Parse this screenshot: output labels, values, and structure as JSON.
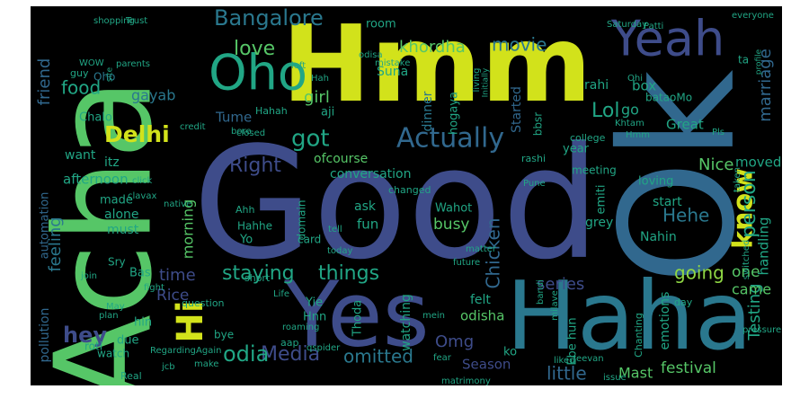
{
  "palette": {
    "background": "#000000",
    "colors": {
      "y": "#d2e21b",
      "g": "#56c667",
      "lg": "#8fd744",
      "t": "#21a685",
      "c": "#2a788e",
      "s": "#31688e",
      "b": "#3e4c8a",
      "n": "#46337e",
      "p": "#482575",
      "d": "#440154"
    }
  },
  "words": [
    {
      "text": "Good",
      "color": "b"
    },
    {
      "text": "Hmm",
      "color": "y"
    },
    {
      "text": "Acha",
      "color": "g"
    },
    {
      "text": "Ok",
      "color": "s"
    },
    {
      "text": "Haha",
      "color": "c"
    },
    {
      "text": "Yes",
      "color": "b"
    },
    {
      "text": "Yeah",
      "color": "b"
    },
    {
      "text": "Oho",
      "color": "t"
    },
    {
      "text": "Hi",
      "color": "y"
    },
    {
      "text": "know",
      "color": "y"
    },
    {
      "text": "Bangalore",
      "color": "c"
    },
    {
      "text": "Actually",
      "color": "s"
    },
    {
      "text": "Delhi",
      "color": "y"
    },
    {
      "text": "got",
      "color": "t"
    },
    {
      "text": "Lol",
      "color": "t"
    },
    {
      "text": "person",
      "color": "t"
    },
    {
      "text": "khordha",
      "color": "g"
    },
    {
      "text": "movie",
      "color": "c"
    },
    {
      "text": "love",
      "color": "g"
    },
    {
      "text": "food",
      "color": "t"
    },
    {
      "text": "friend",
      "color": "s"
    },
    {
      "text": "girl",
      "color": "g"
    },
    {
      "text": "gayab",
      "color": "c"
    },
    {
      "text": "Right",
      "color": "b"
    },
    {
      "text": "marriage",
      "color": "s"
    },
    {
      "text": "Media",
      "color": "b"
    },
    {
      "text": "omitted",
      "color": "c"
    },
    {
      "text": "hey",
      "color": "b"
    },
    {
      "text": "odia",
      "color": "t"
    },
    {
      "text": "staying",
      "color": "t"
    },
    {
      "text": "things",
      "color": "t"
    },
    {
      "text": "feeling",
      "color": "c"
    },
    {
      "text": "morning",
      "color": "g"
    },
    {
      "text": "going",
      "color": "lg"
    },
    {
      "text": "Testing",
      "color": "t"
    },
    {
      "text": "festival",
      "color": "g"
    },
    {
      "text": "little",
      "color": "s"
    },
    {
      "text": "Chicken",
      "color": "s"
    },
    {
      "text": "Nice",
      "color": "g"
    },
    {
      "text": "Hehe",
      "color": "c"
    },
    {
      "text": "series",
      "color": "b"
    },
    {
      "text": "Rice",
      "color": "b"
    },
    {
      "text": "time",
      "color": "b"
    },
    {
      "text": "Omg",
      "color": "b"
    },
    {
      "text": "one",
      "color": "g"
    },
    {
      "text": "came",
      "color": "g"
    },
    {
      "text": "Mast",
      "color": "g"
    },
    {
      "text": "emotions",
      "color": "t"
    },
    {
      "text": "handling",
      "color": "t"
    },
    {
      "text": "moved",
      "color": "t"
    },
    {
      "text": "Oho",
      "color": "c"
    },
    {
      "text": "conversation",
      "color": "t"
    },
    {
      "text": "ofcourse",
      "color": "g"
    },
    {
      "text": "afternoon",
      "color": "t"
    },
    {
      "text": "busy",
      "color": "g"
    },
    {
      "text": "watching",
      "color": "t"
    },
    {
      "text": "Season",
      "color": "b"
    },
    {
      "text": "odisha",
      "color": "g"
    },
    {
      "text": "pollution",
      "color": "s"
    },
    {
      "text": "automation",
      "color": "s"
    },
    {
      "text": "Tume",
      "color": "s"
    },
    {
      "text": "dinner",
      "color": "c"
    },
    {
      "text": "hogaya",
      "color": "t"
    },
    {
      "text": "Started",
      "color": "s"
    },
    {
      "text": "Suna",
      "color": "t"
    },
    {
      "text": "room",
      "color": "t"
    },
    {
      "text": "rahi",
      "color": "t"
    },
    {
      "text": "box",
      "color": "t"
    },
    {
      "text": "go",
      "color": "t"
    },
    {
      "text": "Great",
      "color": "t"
    },
    {
      "text": "year",
      "color": "t"
    },
    {
      "text": "loving",
      "color": "t"
    },
    {
      "text": "start",
      "color": "t"
    },
    {
      "text": "Nahin",
      "color": "t"
    },
    {
      "text": "felt",
      "color": "t"
    },
    {
      "text": "ko",
      "color": "t"
    },
    {
      "text": "Ebe hun",
      "color": "t"
    },
    {
      "text": "itz",
      "color": "t"
    },
    {
      "text": "want",
      "color": "t"
    },
    {
      "text": "Chalo",
      "color": "t"
    },
    {
      "text": "made",
      "color": "t"
    },
    {
      "text": "alone",
      "color": "t"
    },
    {
      "text": "must",
      "color": "t"
    },
    {
      "text": "Bas",
      "color": "t"
    },
    {
      "text": "Sry",
      "color": "t"
    },
    {
      "text": "hin",
      "color": "t"
    },
    {
      "text": "due",
      "color": "t"
    },
    {
      "text": "watch",
      "color": "t"
    },
    {
      "text": "roti",
      "color": "t"
    },
    {
      "text": "bye",
      "color": "t"
    },
    {
      "text": "Yie",
      "color": "t"
    },
    {
      "text": "Hnn",
      "color": "t"
    },
    {
      "text": "Yo",
      "color": "t"
    },
    {
      "text": "Hahhe",
      "color": "t"
    },
    {
      "text": "card",
      "color": "t"
    },
    {
      "text": "ask",
      "color": "t"
    },
    {
      "text": "fun",
      "color": "t"
    },
    {
      "text": "grey",
      "color": "t"
    },
    {
      "text": "emiti",
      "color": "t"
    },
    {
      "text": "Wahot",
      "color": "t"
    },
    {
      "text": "aji",
      "color": "t"
    },
    {
      "text": "bbsr",
      "color": "t"
    },
    {
      "text": "bataoMo",
      "color": "t"
    },
    {
      "text": "Ahh",
      "color": "t"
    },
    {
      "text": "domain",
      "color": "t"
    },
    {
      "text": "question",
      "color": "t"
    },
    {
      "text": "Thoda",
      "color": "t"
    },
    {
      "text": "Real",
      "color": "t"
    },
    {
      "text": "Chanting",
      "color": "t"
    },
    {
      "text": "Jeevan",
      "color": "t"
    },
    {
      "text": "day",
      "color": "t"
    },
    {
      "text": "liked",
      "color": "t"
    },
    {
      "text": "issue",
      "color": "t"
    },
    {
      "text": "short",
      "color": "t"
    },
    {
      "text": "Life",
      "color": "t"
    },
    {
      "text": "meeting",
      "color": "t"
    },
    {
      "text": "changed",
      "color": "t"
    },
    {
      "text": "Hahah",
      "color": "t"
    },
    {
      "text": "Hah",
      "color": "t"
    },
    {
      "text": "WOW",
      "color": "t"
    },
    {
      "text": "parents",
      "color": "t"
    },
    {
      "text": "guy",
      "color": "t"
    },
    {
      "text": "shopping",
      "color": "t"
    },
    {
      "text": "Trust",
      "color": "t"
    },
    {
      "text": "Saturday",
      "color": "t"
    },
    {
      "text": "Patti",
      "color": "t"
    },
    {
      "text": "everyone",
      "color": "t"
    },
    {
      "text": "profile",
      "color": "t"
    },
    {
      "text": "living",
      "color": "t"
    },
    {
      "text": "Initially",
      "color": "t"
    },
    {
      "text": "college",
      "color": "t"
    },
    {
      "text": "Khtam",
      "color": "t"
    },
    {
      "text": "credit",
      "color": "t"
    },
    {
      "text": "bore",
      "color": "t"
    },
    {
      "text": "rashi",
      "color": "t"
    },
    {
      "text": "Pune",
      "color": "t"
    },
    {
      "text": "tell",
      "color": "t"
    },
    {
      "text": "matter",
      "color": "t"
    },
    {
      "text": "future",
      "color": "t"
    },
    {
      "text": "today",
      "color": "t"
    },
    {
      "text": "join",
      "color": "t"
    },
    {
      "text": "Regarding",
      "color": "t"
    },
    {
      "text": "Again",
      "color": "t"
    },
    {
      "text": "roaming",
      "color": "t"
    },
    {
      "text": "qspider",
      "color": "t"
    },
    {
      "text": "fear",
      "color": "t"
    },
    {
      "text": "aap",
      "color": "t"
    },
    {
      "text": "matrimony",
      "color": "t"
    },
    {
      "text": "jcb",
      "color": "t"
    },
    {
      "text": "make",
      "color": "t"
    },
    {
      "text": "plan",
      "color": "t"
    },
    {
      "text": "May",
      "color": "t"
    },
    {
      "text": "fight",
      "color": "t"
    },
    {
      "text": "mein",
      "color": "t"
    },
    {
      "text": "pressure",
      "color": "t"
    },
    {
      "text": "bandi",
      "color": "t"
    },
    {
      "text": "milave",
      "color": "t"
    },
    {
      "text": "Pls",
      "color": "t"
    },
    {
      "text": "ta",
      "color": "t"
    },
    {
      "text": "Ohi",
      "color": "t"
    },
    {
      "text": "Hmm",
      "color": "t"
    },
    {
      "text": "taken",
      "color": "t"
    },
    {
      "text": "switched",
      "color": "t"
    },
    {
      "text": "site",
      "color": "t"
    },
    {
      "text": "left",
      "color": "t"
    },
    {
      "text": "odisa",
      "color": "t"
    },
    {
      "text": "mistake",
      "color": "t"
    },
    {
      "text": "closed",
      "color": "t"
    },
    {
      "text": "click",
      "color": "t"
    },
    {
      "text": "clavax",
      "color": "t"
    },
    {
      "text": "native",
      "color": "t"
    }
  ]
}
